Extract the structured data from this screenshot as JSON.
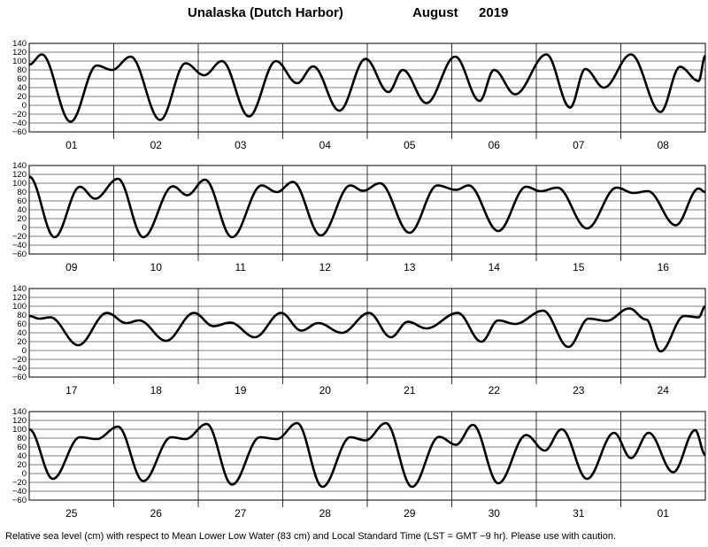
{
  "header": {
    "location": "Unalaska (Dutch Harbor)",
    "month": "August",
    "year": "2019"
  },
  "footnote": "Relative sea level (cm) with respect to Mean Lower Low Water (83 cm) and Local Standard Time (LST = GMT −9 hr). Please use with caution.",
  "chart_data": {
    "type": "line",
    "title": "Unalaska (Dutch Harbor)        August   2019",
    "ylabel": "",
    "xlabel": "",
    "ylim": [
      -60,
      140
    ],
    "y_ticks": [
      "140",
      "120",
      "100",
      "80",
      "60",
      "40",
      "20",
      "0",
      "−20",
      "−40",
      "−60"
    ],
    "grid": true,
    "line_color": "#000000",
    "panels": [
      {
        "days": [
          "01",
          "02",
          "03",
          "04",
          "05",
          "06",
          "07",
          "08"
        ],
        "extrema": [
          [
            0,
            92
          ],
          [
            0.15,
            115
          ],
          [
            0.49,
            -37
          ],
          [
            0.8,
            90
          ],
          [
            0.98,
            80
          ],
          [
            1.2,
            110
          ],
          [
            1.55,
            -33
          ],
          [
            1.85,
            95
          ],
          [
            2.07,
            68
          ],
          [
            2.28,
            100
          ],
          [
            2.6,
            -25
          ],
          [
            2.92,
            100
          ],
          [
            3.17,
            50
          ],
          [
            3.36,
            88
          ],
          [
            3.67,
            -12
          ],
          [
            3.98,
            105
          ],
          [
            4.25,
            30
          ],
          [
            4.42,
            80
          ],
          [
            4.7,
            5
          ],
          [
            5.04,
            110
          ],
          [
            5.33,
            10
          ],
          [
            5.5,
            80
          ],
          [
            5.75,
            25
          ],
          [
            6.12,
            115
          ],
          [
            6.4,
            -5
          ],
          [
            6.58,
            82
          ],
          [
            6.8,
            40
          ],
          [
            7.12,
            115
          ],
          [
            7.47,
            -15
          ],
          [
            7.7,
            87
          ],
          [
            7.92,
            55
          ],
          [
            8.0,
            112
          ]
        ]
      },
      {
        "days": [
          "09",
          "10",
          "11",
          "12",
          "13",
          "14",
          "15",
          "16"
        ],
        "extrema": [
          [
            0,
            115
          ],
          [
            0.3,
            -22
          ],
          [
            0.6,
            92
          ],
          [
            0.78,
            65
          ],
          [
            1.05,
            110
          ],
          [
            1.35,
            -22
          ],
          [
            1.7,
            93
          ],
          [
            1.87,
            73
          ],
          [
            2.08,
            108
          ],
          [
            2.4,
            -22
          ],
          [
            2.75,
            95
          ],
          [
            2.93,
            80
          ],
          [
            3.12,
            103
          ],
          [
            3.45,
            -18
          ],
          [
            3.8,
            95
          ],
          [
            3.95,
            83
          ],
          [
            4.15,
            100
          ],
          [
            4.5,
            -12
          ],
          [
            4.83,
            95
          ],
          [
            5.05,
            85
          ],
          [
            5.2,
            95
          ],
          [
            5.55,
            -8
          ],
          [
            5.88,
            92
          ],
          [
            6.05,
            82
          ],
          [
            6.25,
            90
          ],
          [
            6.6,
            -2
          ],
          [
            6.95,
            90
          ],
          [
            7.15,
            78
          ],
          [
            7.32,
            82
          ],
          [
            7.65,
            5
          ],
          [
            7.92,
            88
          ],
          [
            8.0,
            80
          ]
        ]
      },
      {
        "days": [
          "17",
          "18",
          "19",
          "20",
          "21",
          "22",
          "23",
          "24"
        ],
        "extrema": [
          [
            0,
            78
          ],
          [
            0.12,
            72
          ],
          [
            0.25,
            75
          ],
          [
            0.58,
            12
          ],
          [
            0.92,
            85
          ],
          [
            1.15,
            62
          ],
          [
            1.3,
            68
          ],
          [
            1.62,
            22
          ],
          [
            1.95,
            85
          ],
          [
            2.18,
            55
          ],
          [
            2.38,
            63
          ],
          [
            2.67,
            30
          ],
          [
            2.98,
            85
          ],
          [
            3.22,
            45
          ],
          [
            3.42,
            62
          ],
          [
            3.7,
            40
          ],
          [
            4.02,
            85
          ],
          [
            4.28,
            30
          ],
          [
            4.48,
            65
          ],
          [
            4.7,
            50
          ],
          [
            5.07,
            85
          ],
          [
            5.35,
            20
          ],
          [
            5.55,
            68
          ],
          [
            5.75,
            60
          ],
          [
            6.08,
            90
          ],
          [
            6.38,
            8
          ],
          [
            6.62,
            72
          ],
          [
            6.83,
            67
          ],
          [
            7.1,
            95
          ],
          [
            7.3,
            70
          ],
          [
            7.47,
            -2
          ],
          [
            7.75,
            78
          ],
          [
            7.92,
            75
          ],
          [
            8.0,
            100
          ]
        ]
      },
      {
        "days": [
          "25",
          "26",
          "27",
          "28",
          "29",
          "30",
          "31",
          "01"
        ],
        "extrema": [
          [
            0,
            100
          ],
          [
            0.28,
            -12
          ],
          [
            0.6,
            82
          ],
          [
            0.8,
            78
          ],
          [
            1.05,
            106
          ],
          [
            1.35,
            -17
          ],
          [
            1.68,
            82
          ],
          [
            1.85,
            78
          ],
          [
            2.1,
            112
          ],
          [
            2.4,
            -25
          ],
          [
            2.73,
            82
          ],
          [
            2.93,
            78
          ],
          [
            3.17,
            114
          ],
          [
            3.47,
            -30
          ],
          [
            3.8,
            82
          ],
          [
            3.98,
            75
          ],
          [
            4.22,
            114
          ],
          [
            4.53,
            -30
          ],
          [
            4.85,
            83
          ],
          [
            5.05,
            65
          ],
          [
            5.25,
            110
          ],
          [
            5.55,
            -22
          ],
          [
            5.88,
            87
          ],
          [
            6.1,
            52
          ],
          [
            6.3,
            100
          ],
          [
            6.6,
            -12
          ],
          [
            6.92,
            92
          ],
          [
            7.12,
            35
          ],
          [
            7.33,
            92
          ],
          [
            7.62,
            3
          ],
          [
            7.88,
            98
          ],
          [
            8.0,
            42
          ]
        ]
      }
    ]
  }
}
